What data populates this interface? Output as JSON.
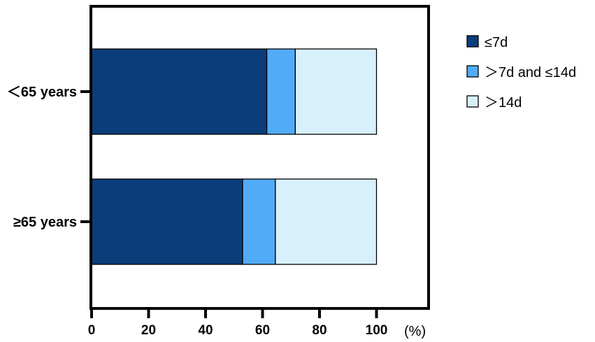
{
  "chart_data": {
    "type": "bar",
    "orientation": "horizontal",
    "stacked": true,
    "categories": [
      "＜65 years",
      "≥65 years"
    ],
    "series": [
      {
        "name": "≤7d",
        "values": [
          61.5,
          53.0
        ],
        "color": "#0b3d7a"
      },
      {
        "name": "＞7d and ≤14d",
        "values": [
          10.0,
          11.5
        ],
        "color": "#52abf7"
      },
      {
        "name": "＞14d",
        "values": [
          28.5,
          35.5
        ],
        "color": "#d8f0fc"
      }
    ],
    "x_ticks": [
      "0",
      "20",
      "40",
      "60",
      "80",
      "100"
    ],
    "x_unit": "(%)",
    "xlim": [
      0,
      100
    ],
    "legend_position": "right",
    "grid": false
  }
}
